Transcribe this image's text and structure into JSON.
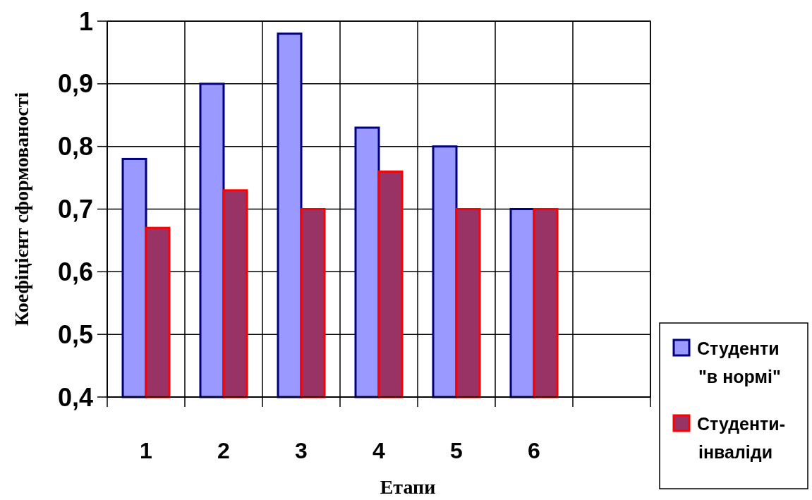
{
  "chart_data": {
    "type": "bar",
    "xlabel": "Етапи",
    "ylabel": "Коефіцієнт сформованості",
    "categories": [
      "1",
      "2",
      "3",
      "4",
      "5",
      "6",
      null
    ],
    "series": [
      {
        "name": "Студенти \"в нормі\"",
        "color": "#9999ff",
        "values": [
          0.78,
          0.9,
          0.98,
          0.83,
          0.8,
          0.7,
          null
        ]
      },
      {
        "name": "Студенти-інваліди",
        "color": "#993366",
        "values": [
          0.67,
          0.73,
          0.7,
          0.76,
          0.7,
          0.7,
          null
        ]
      }
    ],
    "ylim": [
      0.4,
      1
    ],
    "yticks": [
      {
        "value": 0.4,
        "label": "0,4"
      },
      {
        "value": 0.5,
        "label": "0,5"
      },
      {
        "value": 0.6,
        "label": "0,6"
      },
      {
        "value": 0.7,
        "label": "0,7"
      },
      {
        "value": 0.8,
        "label": "0,8"
      },
      {
        "value": 0.9,
        "label": "0,9"
      },
      {
        "value": 1,
        "label": "1"
      }
    ],
    "grid": true,
    "legend": "bottom right"
  }
}
